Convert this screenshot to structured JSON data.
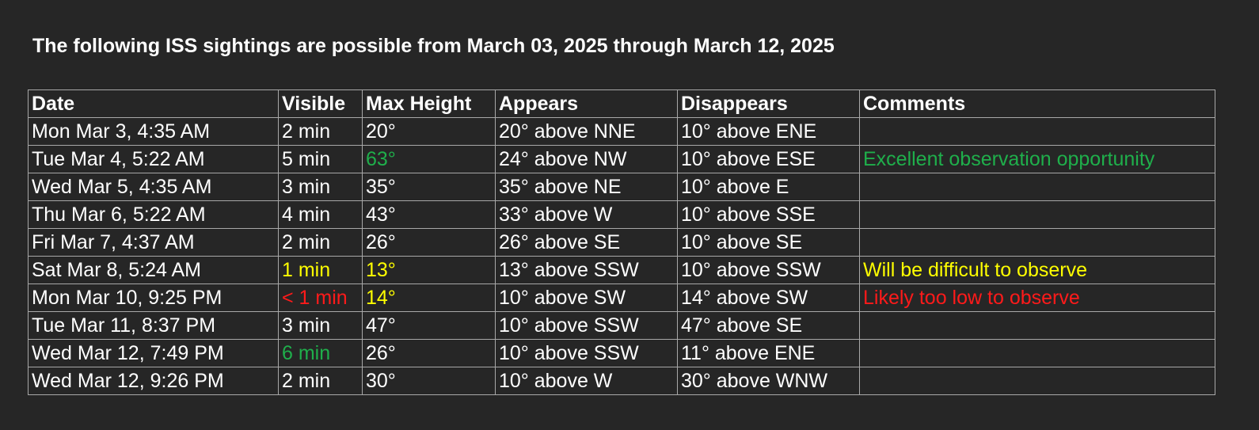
{
  "heading": "The following ISS sightings are possible from March 03, 2025 through March 12, 2025",
  "colors": {
    "background": "#262626",
    "text": "#ffffff",
    "border": "#a8a8a8",
    "good": "#1faf4b",
    "caution": "#ffff00",
    "poor": "#ff1a1a"
  },
  "columns": [
    "Date",
    "Visible",
    "Max Height",
    "Appears",
    "Disappears",
    "Comments"
  ],
  "rows": [
    {
      "date": "Mon Mar 3, 4:35 AM",
      "visible": "2 min",
      "max_height": "20°",
      "appears": "20° above NNE",
      "disappears": "10° above ENE",
      "comments": ""
    },
    {
      "date": "Tue Mar 4, 5:22 AM",
      "visible": "5 min",
      "max_height": "63°",
      "appears": "24° above NW",
      "disappears": "10° above ESE",
      "comments": "Excellent observation opportunity",
      "max_height_status": "good",
      "comments_status": "good"
    },
    {
      "date": "Wed Mar 5, 4:35 AM",
      "visible": "3 min",
      "max_height": "35°",
      "appears": "35° above NE",
      "disappears": "10° above E",
      "comments": ""
    },
    {
      "date": "Thu Mar 6, 5:22 AM",
      "visible": "4 min",
      "max_height": "43°",
      "appears": "33° above W",
      "disappears": "10° above SSE",
      "comments": ""
    },
    {
      "date": "Fri Mar 7, 4:37 AM",
      "visible": "2 min",
      "max_height": "26°",
      "appears": "26° above SE",
      "disappears": "10° above SE",
      "comments": ""
    },
    {
      "date": "Sat Mar 8, 5:24 AM",
      "visible": "1 min",
      "max_height": "13°",
      "appears": "13° above SSW",
      "disappears": "10° above SSW",
      "comments": "Will be difficult to observe",
      "visible_status": "caution",
      "max_height_status": "caution",
      "comments_status": "caution"
    },
    {
      "date": "Mon Mar 10, 9:25 PM",
      "visible": "< 1 min",
      "max_height": "14°",
      "appears": "10° above SW",
      "disappears": "14° above SW",
      "comments": "Likely too low to observe",
      "visible_status": "poor",
      "max_height_status": "caution",
      "comments_status": "poor"
    },
    {
      "date": "Tue Mar 11, 8:37 PM",
      "visible": "3 min",
      "max_height": "47°",
      "appears": "10° above SSW",
      "disappears": "47° above SE",
      "comments": ""
    },
    {
      "date": "Wed Mar 12, 7:49 PM",
      "visible": "6 min",
      "max_height": "26°",
      "appears": "10° above SSW",
      "disappears": "11° above ENE",
      "comments": "",
      "visible_status": "good"
    },
    {
      "date": "Wed Mar 12, 9:26 PM",
      "visible": "2 min",
      "max_height": "30°",
      "appears": "10° above W",
      "disappears": "30° above WNW",
      "comments": ""
    }
  ]
}
